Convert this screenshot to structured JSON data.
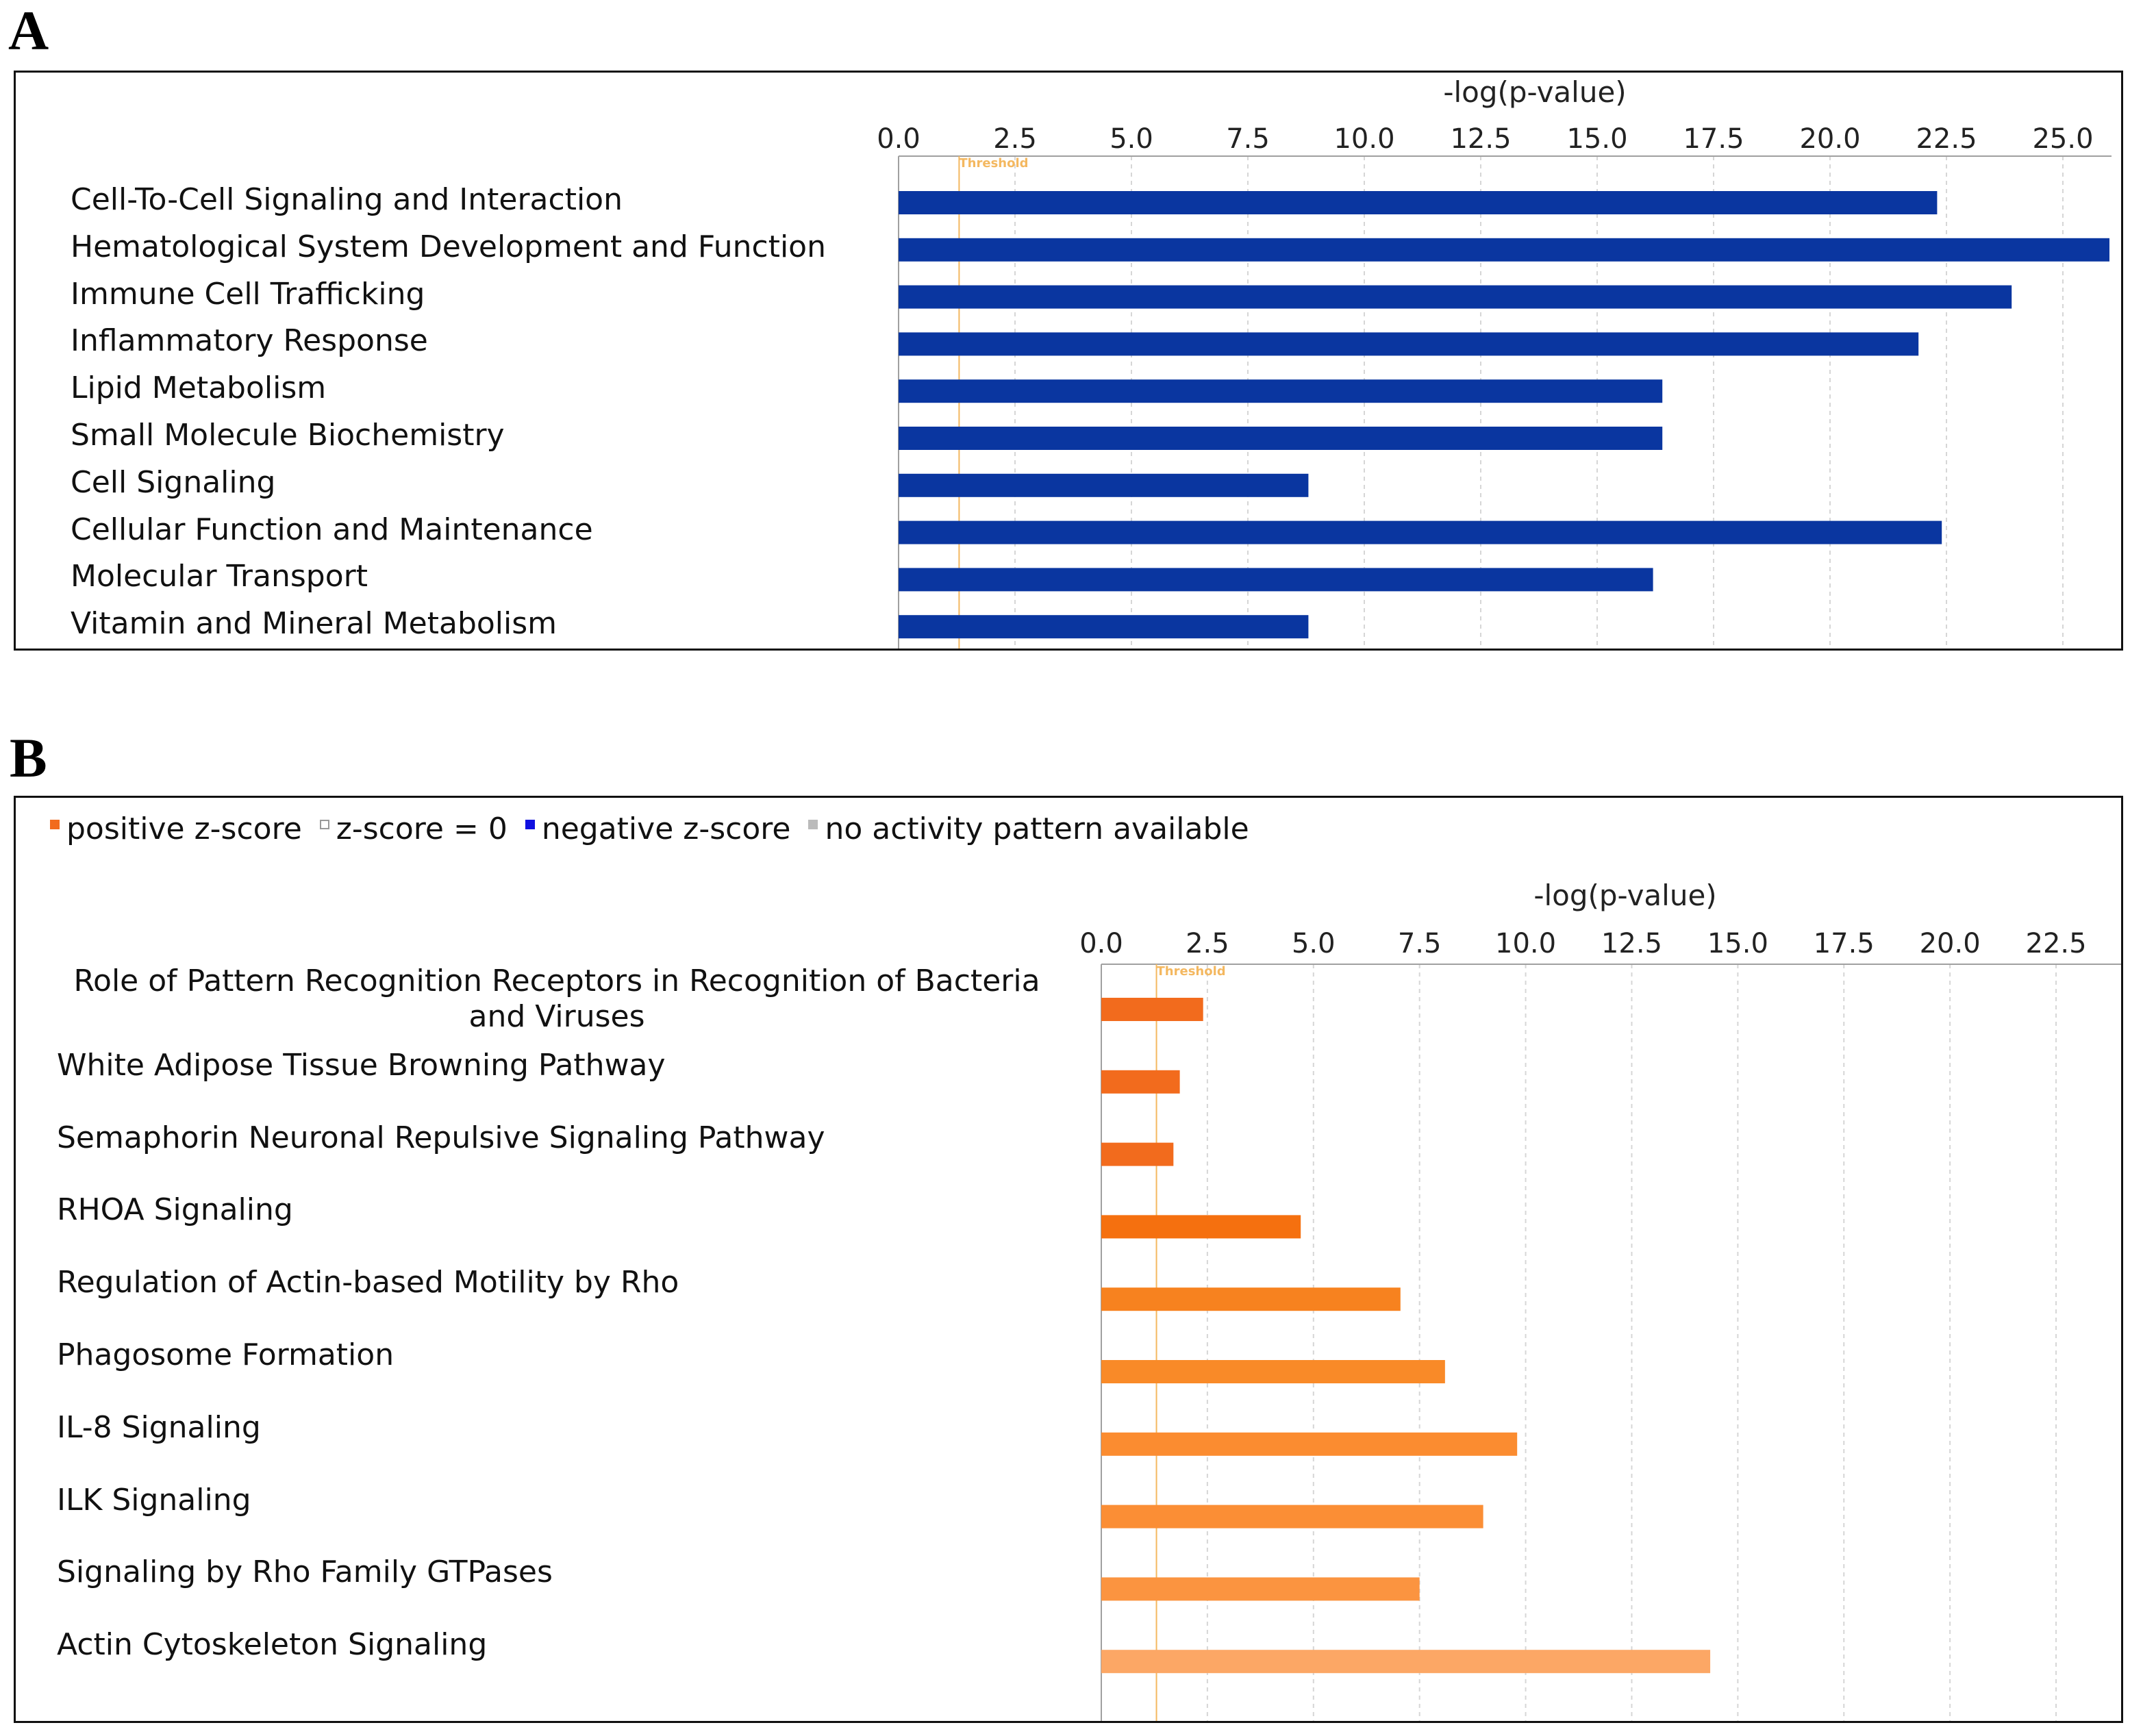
{
  "panelA": {
    "letter": "A",
    "chart_data": {
      "type": "bar",
      "orientation": "horizontal",
      "xlabel": "-log(p-value)",
      "xlim": [
        0,
        26
      ],
      "ticks": [
        "0.0",
        "2.5",
        "5.0",
        "7.5",
        "10.0",
        "12.5",
        "15.0",
        "17.5",
        "20.0",
        "22.5",
        "25.0"
      ],
      "tick_values": [
        0,
        2.5,
        5,
        7.5,
        10,
        12.5,
        15,
        17.5,
        20,
        22.5,
        25
      ],
      "threshold": {
        "label": "Threshold",
        "value": 1.3,
        "color": "#f4b860"
      },
      "bar_color": "#0a36a0",
      "categories": [
        "Cell-To-Cell Signaling and Interaction",
        "Hematological System Development and Function",
        "Immune Cell Trafficking",
        "Inflammatory Response",
        "Lipid Metabolism",
        "Small Molecule Biochemistry",
        "Cell Signaling",
        "Cellular Function and Maintenance",
        "Molecular Transport",
        "Vitamin and Mineral Metabolism"
      ],
      "values": [
        22.3,
        26.0,
        23.9,
        21.9,
        16.4,
        16.4,
        8.8,
        22.4,
        16.2,
        8.8
      ]
    }
  },
  "panelB": {
    "letter": "B",
    "legend": [
      {
        "label": "positive z-score",
        "color": "#f26b1d"
      },
      {
        "label": "z-score = 0",
        "color": "#ffffff"
      },
      {
        "label": "negative z-score",
        "color": "#1010e0"
      },
      {
        "label": "no activity pattern available",
        "color": "#bbbbbb"
      }
    ],
    "chart_data": {
      "type": "bar",
      "orientation": "horizontal",
      "xlabel": "-log(p-value)",
      "xlim": [
        0,
        23.5
      ],
      "ticks": [
        "0.0",
        "2.5",
        "5.0",
        "7.5",
        "10.0",
        "12.5",
        "15.0",
        "17.5",
        "20.0",
        "22.5"
      ],
      "tick_values": [
        0,
        2.5,
        5,
        7.5,
        10,
        12.5,
        15,
        17.5,
        20,
        22.5
      ],
      "threshold": {
        "label": "Threshold",
        "value": 1.3,
        "color": "#f4b860"
      },
      "categories": [
        "Role of Pattern Recognition Receptors in Recognition of Bacteria and Viruses",
        "White Adipose Tissue Browning Pathway",
        "Semaphorin Neuronal Repulsive Signaling Pathway",
        "RHOA Signaling",
        "Regulation of Actin-based Motility by Rho",
        "Phagosome Formation",
        "IL-8 Signaling",
        "ILK Signaling",
        "Signaling by Rho Family GTPases",
        "Actin Cytoskeleton Signaling"
      ],
      "values": [
        2.4,
        1.85,
        1.7,
        4.7,
        7.05,
        8.1,
        9.8,
        9.0,
        7.5,
        14.35
      ],
      "bar_colors": [
        "#f26b1d",
        "#f26b1d",
        "#f26b1d",
        "#f5700f",
        "#f7821f",
        "#f98a28",
        "#fb8c30",
        "#fb8e35",
        "#fb9440",
        "#fca765"
      ]
    }
  }
}
